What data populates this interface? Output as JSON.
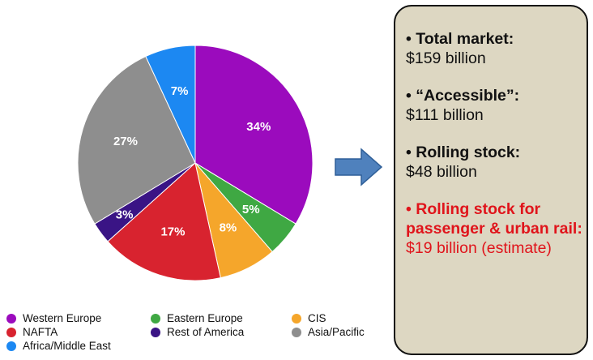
{
  "chart_data": {
    "type": "pie",
    "slices": [
      {
        "label": "Western Europe",
        "value": 34,
        "display": "34%",
        "color": "#9b0bbd"
      },
      {
        "label": "Eastern Europe",
        "value": 5,
        "display": "5%",
        "color": "#3fa843"
      },
      {
        "label": "CIS",
        "value": 8,
        "display": "8%",
        "color": "#f5a62b"
      },
      {
        "label": "NAFTA",
        "value": 17,
        "display": "17%",
        "color": "#d8232f"
      },
      {
        "label": "Rest of America",
        "value": 3,
        "display": "3%",
        "color": "#3a1485"
      },
      {
        "label": "Asia/Pacific",
        "value": 27,
        "display": "27%",
        "color": "#8e8e8e"
      },
      {
        "label": "Africa/Middle East",
        "value": 7,
        "display": "7%",
        "color": "#1c88f2"
      }
    ],
    "legend": [
      {
        "label": "Western Europe",
        "color": "#9b0bbd"
      },
      {
        "label": "Eastern Europe",
        "color": "#3fa843"
      },
      {
        "label": "CIS",
        "color": "#f5a62b"
      },
      {
        "label": "NAFTA",
        "color": "#d8232f"
      },
      {
        "label": "Rest of America",
        "color": "#3a1485"
      },
      {
        "label": "Asia/Pacific",
        "color": "#8e8e8e"
      },
      {
        "label": "Africa/Middle East",
        "color": "#1c88f2"
      }
    ],
    "legend_position": "bottom"
  },
  "arrow": {
    "color": "#4f81bd",
    "icon": "right-arrow-icon"
  },
  "info": {
    "items": [
      {
        "head": "• Total market:",
        "value": "$159 billion",
        "highlight": false
      },
      {
        "head": "• “Accessible”:",
        "value": "$111 billion",
        "highlight": false
      },
      {
        "head": "• Rolling stock:",
        "value": "$48 billion",
        "highlight": false
      },
      {
        "head": "• Rolling stock for passenger & urban rail:",
        "value": "$19 billion (estimate)",
        "highlight": true
      }
    ]
  }
}
